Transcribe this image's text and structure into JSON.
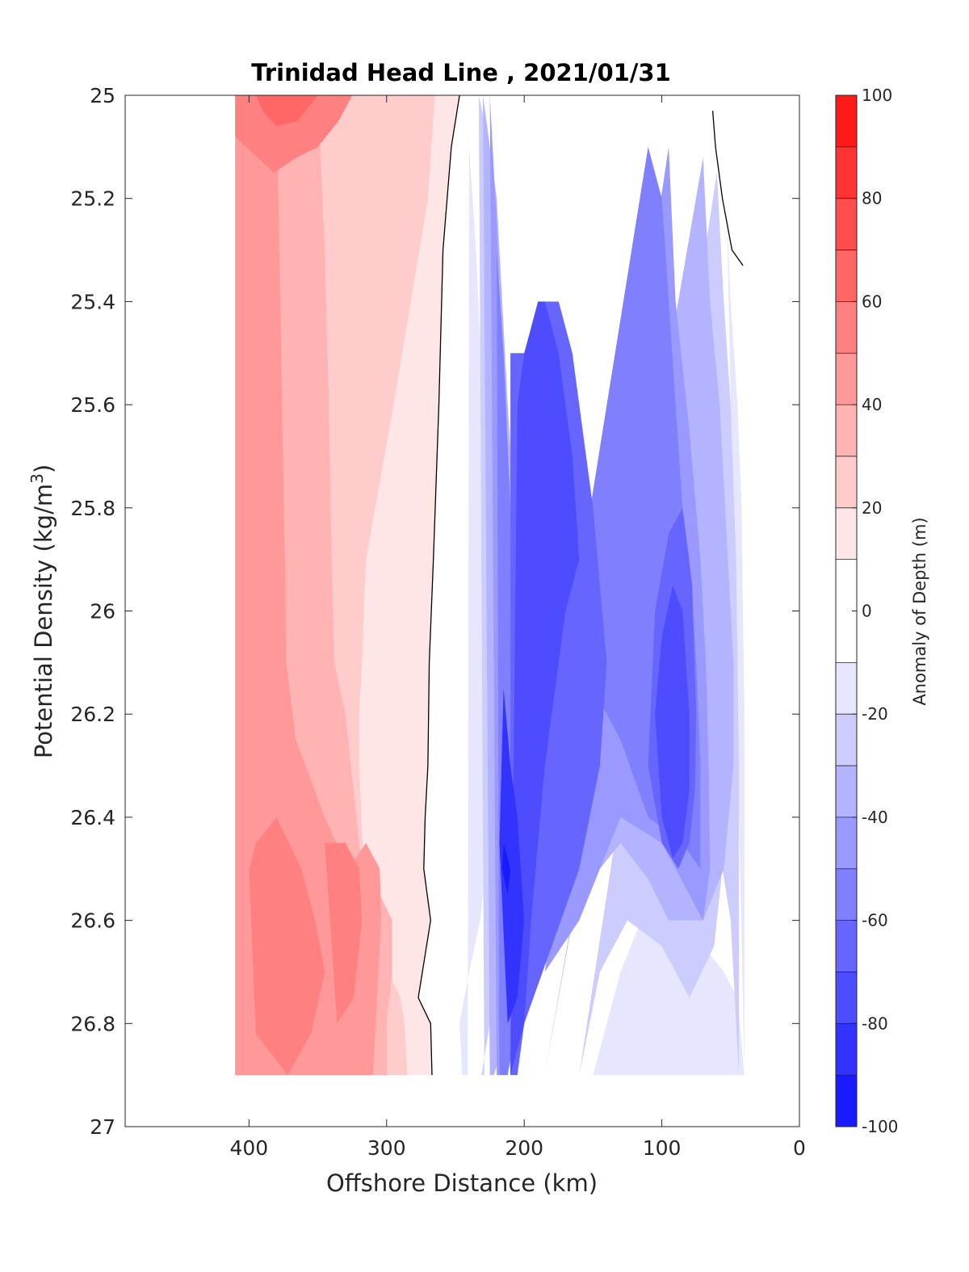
{
  "chart_data": {
    "type": "heatmap",
    "title": "Trinidad Head Line , 2021/01/31",
    "xlabel": "Offshore Distance (km)",
    "ylabel": "Potential Density (kg/m",
    "ylabel_sup": "3",
    "ylabel_close": ")",
    "xlim": [
      490,
      0
    ],
    "ylim": [
      25,
      27
    ],
    "y_reversed": true,
    "x_ticks": [
      400,
      300,
      200,
      100,
      0
    ],
    "x_tick_labels": [
      "400",
      "300",
      "200",
      "100",
      "0"
    ],
    "y_ticks": [
      25,
      25.2,
      25.4,
      25.6,
      25.8,
      26,
      26.2,
      26.4,
      26.6,
      26.8,
      27
    ],
    "y_tick_labels": [
      "25",
      "25.2",
      "25.4",
      "25.6",
      "25.8",
      "26",
      "26.2",
      "26.4",
      "26.6",
      "26.8",
      "27"
    ],
    "colorbar": {
      "label": "Anomaly of Depth (m)",
      "range": [
        -100,
        100
      ],
      "levels": [
        -100,
        -90,
        -80,
        -70,
        -60,
        -50,
        -40,
        -30,
        -20,
        -10,
        10,
        20,
        30,
        40,
        50,
        60,
        70,
        80,
        90,
        100
      ],
      "tick_values": [
        100,
        80,
        60,
        40,
        20,
        0,
        -20,
        -40,
        -60,
        -80,
        -100
      ],
      "tick_labels": [
        "100",
        "80",
        "60",
        "40",
        "20",
        "0",
        "-20",
        "-40",
        "-60",
        "-80",
        "-100"
      ],
      "colors_top_to_bottom": [
        "#ff0000",
        "#ff1a1a",
        "#ff3333",
        "#ff4d4d",
        "#ff6666",
        "#ff8080",
        "#ff9999",
        "#ffb3b3",
        "#ffcccc",
        "#ffe6e6",
        "#ffffff",
        "#ffffff",
        "#e6e6ff",
        "#ccccff",
        "#b3b3ff",
        "#9999ff",
        "#8080ff",
        "#6666ff",
        "#4d4dff",
        "#3333ff",
        "#1a1aff",
        "#0000ff"
      ]
    },
    "data_extent": {
      "x": [
        410,
        40
      ],
      "y": [
        25,
        26.9
      ]
    },
    "zero_contour": [
      {
        "x": [
          247,
          253,
          259,
          262,
          266,
          269,
          270,
          272,
          273,
          268,
          274,
          277,
          268,
          267
        ],
        "y": [
          25,
          25.1,
          25.3,
          25.6,
          25.9,
          26.1,
          26.3,
          26.4,
          26.5,
          26.6,
          26.7,
          26.75,
          26.8,
          26.9
        ]
      },
      {
        "x": [
          63,
          61,
          56,
          49,
          41
        ],
        "y": [
          25.03,
          25.1,
          25.2,
          25.3,
          25.33
        ]
      }
    ],
    "regions": [
      {
        "level": 15,
        "x": [
          410,
          247,
          253,
          259,
          262,
          266,
          269,
          270,
          272,
          273,
          268,
          274,
          277,
          268,
          267,
          410
        ],
        "y": [
          25,
          25,
          25.1,
          25.3,
          25.6,
          25.9,
          26.1,
          26.3,
          26.4,
          26.5,
          26.6,
          26.7,
          26.75,
          26.8,
          26.9,
          26.9
        ]
      },
      {
        "level": 25,
        "x": [
          410,
          265,
          270,
          295,
          315,
          318,
          320,
          320,
          315,
          290,
          287,
          285,
          410
        ],
        "y": [
          25,
          25,
          25.2,
          25.6,
          25.9,
          26.1,
          26.2,
          26.3,
          26.6,
          26.75,
          26.8,
          26.9,
          26.9
        ]
      },
      {
        "level": 35,
        "x": [
          410,
          350,
          345,
          342,
          340,
          338,
          330,
          322,
          318,
          305,
          296,
          296,
          300,
          300,
          410
        ],
        "y": [
          25,
          25,
          25.3,
          25.6,
          25.9,
          26.1,
          26.2,
          26.4,
          26.5,
          26.55,
          26.6,
          26.7,
          26.8,
          26.9,
          26.9
        ]
      },
      {
        "level": 45,
        "x": [
          410,
          380,
          378,
          376,
          374,
          373,
          366,
          345,
          328,
          315,
          305,
          304,
          306,
          310,
          410
        ],
        "y": [
          25,
          25,
          25.3,
          25.6,
          25.9,
          26.1,
          26.25,
          26.4,
          26.5,
          26.45,
          26.5,
          26.6,
          26.7,
          26.9,
          26.9
        ]
      },
      {
        "level": 45,
        "x": [
          385,
          390,
          392,
          385,
          383,
          380,
          377
        ],
        "y": [
          25.6,
          25.7,
          25.8,
          25.88,
          25.75,
          25.55,
          25.7
        ]
      },
      {
        "level": 55,
        "x": [
          410,
          325,
          335,
          350,
          365,
          382,
          410
        ],
        "y": [
          25,
          25,
          25.05,
          25.1,
          25.12,
          25.15,
          25.08
        ]
      },
      {
        "level": 55,
        "x": [
          400,
          395,
          380,
          362,
          352,
          345,
          355,
          372,
          395
        ],
        "y": [
          26.5,
          26.45,
          26.4,
          26.5,
          26.6,
          26.7,
          26.82,
          26.9,
          26.82
        ]
      },
      {
        "level": 55,
        "x": [
          345,
          330,
          320,
          318,
          324,
          336
        ],
        "y": [
          26.45,
          26.45,
          26.5,
          26.6,
          26.75,
          26.8
        ]
      },
      {
        "level": 65,
        "x": [
          395,
          390,
          380,
          365,
          350
        ],
        "y": [
          25,
          25.03,
          25.06,
          25.05,
          25
        ]
      },
      {
        "level": -15,
        "x": [
          240,
          240,
          235,
          230,
          226,
          225,
          220,
          218,
          228,
          232,
          240,
          247,
          245,
          241,
          240
        ],
        "y": [
          25,
          25.1,
          25.3,
          25.6,
          25.9,
          26.1,
          26.3,
          26.4,
          26.5,
          26.6,
          26.7,
          26.8,
          26.9,
          26.9,
          25
        ]
      },
      {
        "level": -15,
        "x": [
          53,
          50,
          45,
          42,
          41,
          40,
          40,
          45,
          55,
          70,
          80,
          90,
          100,
          115,
          130,
          150,
          40
        ],
        "y": [
          25.2,
          25.4,
          25.6,
          25.8,
          26,
          26.2,
          26.9,
          26.75,
          26.7,
          26.65,
          26.6,
          26.55,
          26.55,
          26.6,
          26.7,
          26.9,
          26.9
        ]
      },
      {
        "level": -25,
        "x": [
          233,
          225,
          220,
          216,
          210,
          205,
          200,
          200,
          205,
          212,
          215,
          225,
          231,
          229,
          233
        ],
        "y": [
          25,
          25.1,
          25.3,
          25.6,
          25.9,
          26.1,
          26.3,
          26.4,
          26.5,
          26.6,
          26.7,
          26.8,
          26.9,
          26.9,
          25
        ]
      },
      {
        "level": -25,
        "x": [
          60,
          55,
          50,
          46,
          45,
          44,
          44,
          50,
          56,
          62,
          80,
          100,
          125,
          145,
          160
        ],
        "y": [
          25.15,
          25.4,
          25.6,
          25.9,
          26.1,
          26.3,
          26.9,
          26.6,
          26.5,
          26.65,
          26.75,
          26.65,
          26.6,
          26.7,
          26.9
        ]
      },
      {
        "level": -35,
        "x": [
          230,
          220,
          212,
          205,
          198,
          194,
          190,
          192,
          200,
          205,
          222,
          225,
          230
        ],
        "y": [
          25,
          25.2,
          25.6,
          25.9,
          26.1,
          26.3,
          26.4,
          26.5,
          26.6,
          26.75,
          26.9,
          26.9,
          25
        ]
      },
      {
        "level": -35,
        "x": [
          70,
          65,
          58,
          52,
          48,
          48,
          55,
          70,
          95,
          110,
          130,
          145,
          165,
          185
        ],
        "y": [
          25.12,
          25.4,
          25.6,
          25.9,
          26.1,
          26.3,
          26.5,
          26.6,
          26.6,
          26.52,
          26.45,
          26.5,
          26.6,
          26.9
        ]
      },
      {
        "level": -45,
        "x": [
          225,
          220,
          215,
          210,
          205,
          198,
          190,
          188,
          192,
          205,
          218,
          220,
          225
        ],
        "y": [
          25,
          25.25,
          25.6,
          25.9,
          26.1,
          26.3,
          26.4,
          26.5,
          26.6,
          26.75,
          26.9,
          26.9,
          25
        ]
      },
      {
        "level": -45,
        "x": [
          95,
          90,
          80,
          72,
          68,
          66,
          65,
          70,
          80,
          100,
          130,
          145,
          160,
          185
        ],
        "y": [
          25.1,
          25.4,
          25.65,
          25.9,
          26.1,
          26.3,
          26.5,
          26.6,
          26.55,
          26.45,
          26.4,
          26.5,
          26.6,
          26.7
        ]
      },
      {
        "level": -55,
        "x": [
          220,
          215,
          210,
          205,
          200,
          190,
          182,
          185,
          195,
          205,
          212,
          218,
          220
        ],
        "y": [
          25.3,
          25.5,
          25.8,
          26,
          26.1,
          26.3,
          26.45,
          26.55,
          26.7,
          26.8,
          26.9,
          26.9,
          25.3
        ]
      },
      {
        "level": -55,
        "x": [
          110,
          100,
          90,
          85,
          80,
          75,
          72,
          72,
          85,
          110,
          130,
          150,
          170
        ],
        "y": [
          25.1,
          25.2,
          25.6,
          25.8,
          25.9,
          26.1,
          26.3,
          26.5,
          26.45,
          26.4,
          26.25,
          26.15,
          26.1
        ]
      },
      {
        "level": -65,
        "x": [
          210,
          200,
          185,
          175,
          165,
          150,
          140,
          145,
          160,
          180,
          200,
          205,
          210
        ],
        "y": [
          25.5,
          25.5,
          25.4,
          25.4,
          25.5,
          25.8,
          26.1,
          26.3,
          26.5,
          26.65,
          26.8,
          26.9,
          26.9
        ]
      },
      {
        "level": -65,
        "x": [
          95,
          85,
          78,
          75,
          76,
          80,
          88,
          100,
          110,
          105
        ],
        "y": [
          25.85,
          25.8,
          25.95,
          26.2,
          26.35,
          26.45,
          26.5,
          26.45,
          26.3,
          26
        ]
      },
      {
        "level": -75,
        "x": [
          205,
          200,
          190,
          185,
          175,
          165,
          160,
          170,
          185,
          195,
          200,
          210
        ],
        "y": [
          25.6,
          25.5,
          25.4,
          25.4,
          25.5,
          25.7,
          25.9,
          26,
          26.3,
          26.6,
          26.8,
          26.9
        ]
      },
      {
        "level": -75,
        "x": [
          92,
          85,
          80,
          80,
          85,
          92,
          100,
          105,
          100
        ],
        "y": [
          25.95,
          26,
          26.2,
          26.35,
          26.45,
          26.48,
          26.4,
          26.2,
          26.05
        ]
      },
      {
        "level": -85,
        "x": [
          215,
          210,
          205,
          200,
          205,
          212,
          218
        ],
        "y": [
          26.15,
          26.3,
          26.4,
          26.6,
          26.75,
          26.8,
          26.45
        ]
      },
      {
        "level": -95,
        "x": [
          215,
          210,
          212,
          216
        ],
        "y": [
          26.45,
          26.5,
          26.55,
          26.5
        ]
      }
    ]
  }
}
